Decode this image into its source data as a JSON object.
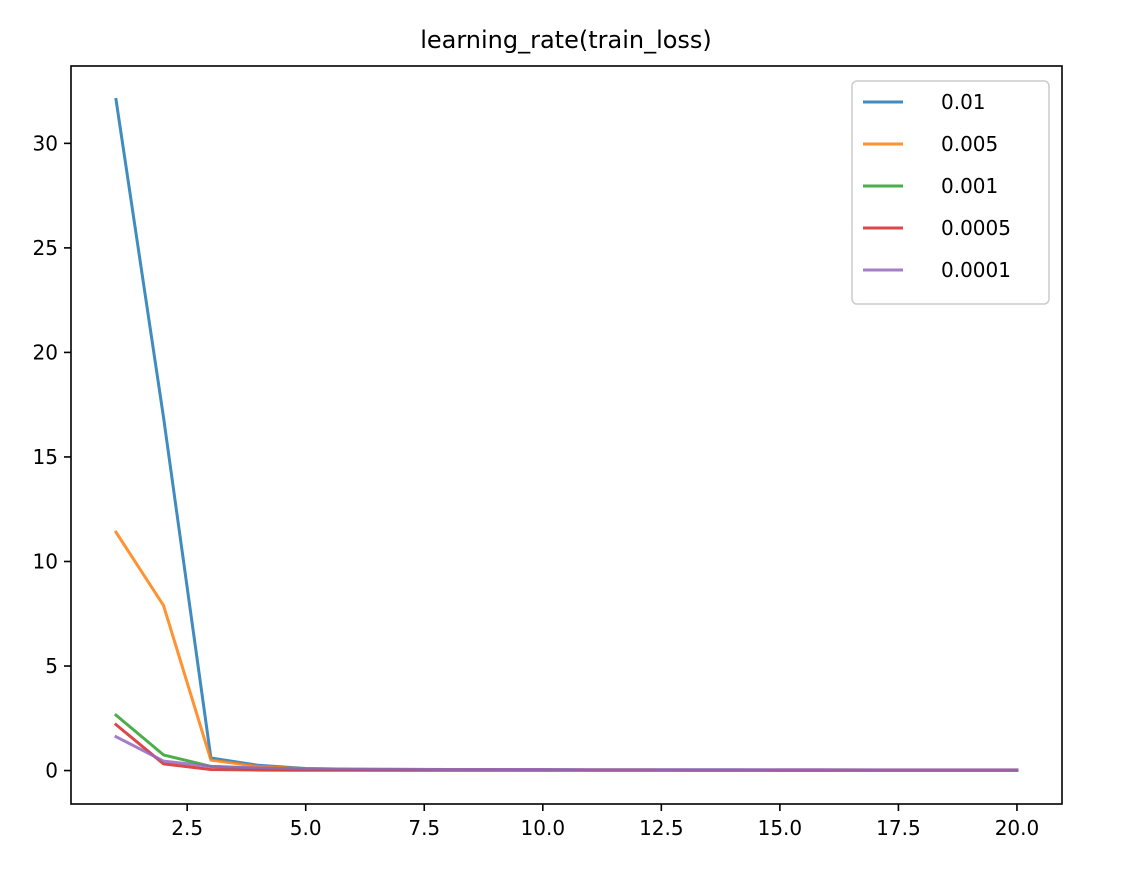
{
  "chart_data": {
    "type": "line",
    "title": "learning_rate(train_loss)",
    "xlabel": "",
    "ylabel": "",
    "xlim": [
      0.05,
      20.95
    ],
    "ylim": [
      -1.6,
      33.7
    ],
    "xticks": [
      2.5,
      5.0,
      7.5,
      10.0,
      12.5,
      15.0,
      17.5,
      20.0
    ],
    "xtick_labels": [
      "2.5",
      "5.0",
      "7.5",
      "10.0",
      "12.5",
      "15.0",
      "17.5",
      "20.0"
    ],
    "yticks": [
      0,
      5,
      10,
      15,
      20,
      25,
      30
    ],
    "ytick_labels": [
      "0",
      "5",
      "10",
      "15",
      "20",
      "25",
      "30"
    ],
    "grid": false,
    "legend": "top-right",
    "x": [
      1,
      2,
      3,
      4,
      5,
      6,
      7,
      8,
      9,
      10,
      11,
      12,
      13,
      14,
      15,
      16,
      17,
      18,
      19,
      20
    ],
    "series": [
      {
        "name": "0.01",
        "color": "#1f77b4",
        "values": [
          32.1,
          16.9,
          0.6,
          0.25,
          0.1,
          0.06,
          0.05,
          0.04,
          0.04,
          0.03,
          0.03,
          0.03,
          0.03,
          0.03,
          0.02,
          0.02,
          0.02,
          0.02,
          0.02,
          0.02
        ]
      },
      {
        "name": "0.005",
        "color": "#ff7f0e",
        "values": [
          11.4,
          7.9,
          0.5,
          0.2,
          0.08,
          0.05,
          0.04,
          0.04,
          0.03,
          0.03,
          0.03,
          0.03,
          0.02,
          0.02,
          0.02,
          0.02,
          0.02,
          0.02,
          0.02,
          0.02
        ]
      },
      {
        "name": "0.001",
        "color": "#2ca02c",
        "values": [
          2.65,
          0.75,
          0.2,
          0.1,
          0.06,
          0.05,
          0.04,
          0.03,
          0.03,
          0.03,
          0.02,
          0.02,
          0.02,
          0.02,
          0.02,
          0.02,
          0.02,
          0.02,
          0.02,
          0.02
        ]
      },
      {
        "name": "0.0005",
        "color": "#d62728",
        "values": [
          2.2,
          0.32,
          0.05,
          0.02,
          0.01,
          0.01,
          0.01,
          0.01,
          0.01,
          0.01,
          0.01,
          0.01,
          0.01,
          0.01,
          0.01,
          0.01,
          0.01,
          0.01,
          0.01,
          0.01
        ]
      },
      {
        "name": "0.0001",
        "color": "#9467bd",
        "values": [
          1.62,
          0.45,
          0.2,
          0.12,
          0.08,
          0.07,
          0.06,
          0.05,
          0.05,
          0.05,
          0.04,
          0.04,
          0.04,
          0.04,
          0.04,
          0.04,
          0.03,
          0.03,
          0.03,
          0.03
        ]
      }
    ]
  }
}
